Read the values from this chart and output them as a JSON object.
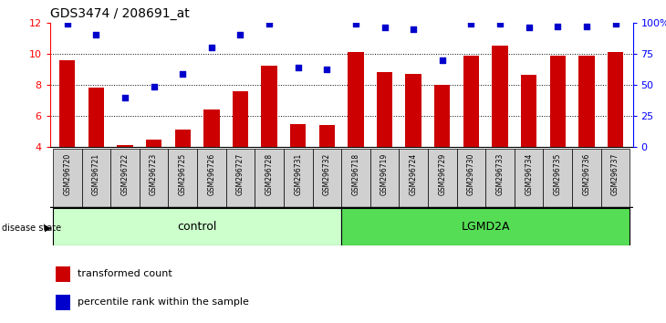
{
  "title": "GDS3474 / 208691_at",
  "samples": [
    "GSM296720",
    "GSM296721",
    "GSM296722",
    "GSM296723",
    "GSM296725",
    "GSM296726",
    "GSM296727",
    "GSM296728",
    "GSM296731",
    "GSM296732",
    "GSM296718",
    "GSM296719",
    "GSM296724",
    "GSM296729",
    "GSM296730",
    "GSM296733",
    "GSM296734",
    "GSM296735",
    "GSM296736",
    "GSM296737"
  ],
  "bar_values": [
    9.6,
    7.8,
    4.1,
    4.5,
    5.1,
    6.4,
    7.6,
    9.2,
    5.5,
    5.4,
    10.1,
    8.8,
    8.7,
    8.0,
    9.9,
    10.5,
    8.65,
    9.9,
    9.9,
    10.1
  ],
  "dot_values": [
    11.9,
    11.2,
    7.2,
    7.85,
    8.7,
    10.4,
    11.2,
    11.9,
    9.1,
    9.0,
    11.9,
    11.7,
    11.6,
    9.6,
    11.9,
    11.9,
    11.7,
    11.75,
    11.75,
    11.9
  ],
  "n_control": 10,
  "n_lgmd2a": 10,
  "ylim_left": [
    4,
    12
  ],
  "ylim_right": [
    0,
    100
  ],
  "yticks_left": [
    4,
    6,
    8,
    10,
    12
  ],
  "yticks_right": [
    0,
    25,
    50,
    75,
    100
  ],
  "bar_color": "#cc0000",
  "dot_color": "#0000cc",
  "control_color": "#ccffcc",
  "lgmd2a_color": "#55dd55",
  "label_bg_color": "#d0d0d0",
  "legend_bar_label": "transformed count",
  "legend_dot_label": "percentile rank within the sample",
  "control_label": "control",
  "lgmd2a_label": "LGMD2A",
  "disease_state_label": "disease state"
}
